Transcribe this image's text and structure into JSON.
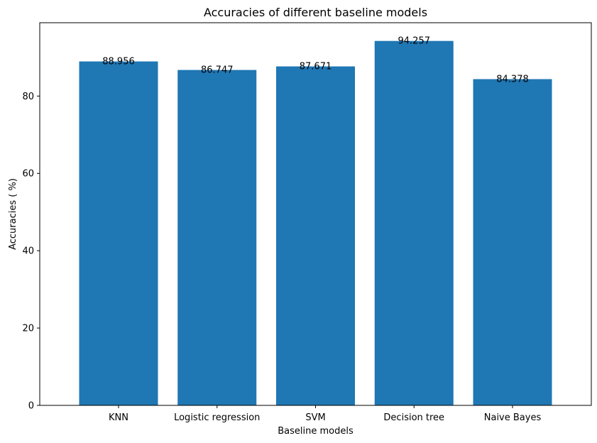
{
  "chart_data": {
    "type": "bar",
    "title": "Accuracies of different baseline models",
    "xlabel": "Baseline models",
    "ylabel": "Accuracies ( %)",
    "categories": [
      "KNN",
      "Logistic regression",
      "SVM",
      "Decision tree",
      "Naive Bayes"
    ],
    "values": [
      88.956,
      86.747,
      87.671,
      94.257,
      84.378
    ],
    "value_labels": [
      "88.956",
      "86.747",
      "87.671",
      "94.257",
      "84.378"
    ],
    "ylim": [
      0,
      98.97
    ],
    "yticks": [
      0,
      20,
      40,
      60,
      80
    ],
    "grid": false,
    "bar_color": "#1f77b4"
  }
}
